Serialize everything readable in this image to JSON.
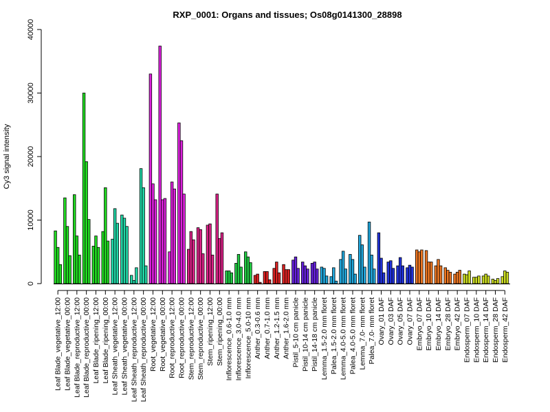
{
  "chart_data": {
    "type": "bar",
    "title": "RXP_0001: Organs and tissues; Os08g0141300_28898",
    "xlabel": "",
    "ylabel": "Cy3 signal intensity",
    "ylim": [
      0,
      40000
    ],
    "yticks": [
      0,
      10000,
      20000,
      30000,
      40000
    ],
    "categories": [
      "Leaf Blade_vegetative_12:00",
      "Leaf Blade_vegetative_00:00",
      "Leaf Blade_reproductive_12:00",
      "Leaf Blade_reproductive_00:00",
      "Leaf Blade_ripening_12:00",
      "Leaf Blade_ripening_00:00",
      "Leaf Sheath_vegetative_12:00",
      "Leaf Sheath_vegetative_00:00",
      "Leaf Sheath_reproductive_12:00",
      "Leaf Sheath_reproductive_00:00",
      "Root_vegetative_12:00",
      "Root_vegetative_00:00",
      "Root_reproductive_12:00",
      "Root_reproductive_00:00",
      "Stem_reproductive_12:00",
      "Stem_reproductive_00:00",
      "Stem_ripening_12:00",
      "Stem_ripening_00:00",
      "Inflorescence_0.6-1.0 mm",
      "Inflorescence_3.0-4.0 mm",
      "Inflorescence_5.0-10 mm",
      "Anther_0.3-0.6 mm",
      "Anther_0.7-1.0 mm",
      "Anther_1.2-1.5 mm",
      "Anther_1.6-2.0 mm",
      "Pistil_5-10 cm panicle",
      "Pistil_10-14 cm panicle",
      "Pistil_14-18 cm panicle",
      "Lemma_1.5-2.0 mm floret",
      "Palea_1.5-2.0 mm floret",
      "Lemma_4.0-5.0 mm floret",
      "Palea_4.0-5.0 mm floret",
      "Lemma_7.0- mm floret",
      "Palea_7.0- mm floret",
      "Ovary_01 DAF",
      "Ovary_03 DAF",
      "Ovary_05 DAF",
      "Ovary_07 DAF",
      "Embryo_07 DAF",
      "Embryo_10 DAF",
      "Embryo_14 DAF",
      "Embryo_28 DAF",
      "Embryo_42 DAF",
      "Endosperm_07 DAF",
      "Endosperm_10 DAF",
      "Endosperm_14 DAF",
      "Endosperm_28 DAF",
      "Endosperm_42 DAF"
    ],
    "groups": [
      {
        "color": "#22dd22",
        "values": [
          8300,
          5700,
          3000
        ]
      },
      {
        "color": "#22dd22",
        "values": [
          13500,
          9000,
          4400
        ]
      },
      {
        "color": "#22dd22",
        "values": [
          14000,
          7500,
          4500
        ]
      },
      {
        "color": "#22dd22",
        "values": [
          30000,
          19200,
          10100
        ]
      },
      {
        "color": "#22dd22",
        "values": [
          5900,
          7500,
          5700
        ]
      },
      {
        "color": "#22dd22",
        "values": [
          8200,
          15100,
          6700
        ]
      },
      {
        "color": "#22d8a8",
        "values": [
          7000,
          11800,
          9500
        ]
      },
      {
        "color": "#22d8a8",
        "values": [
          10800,
          10300,
          9000
        ]
      },
      {
        "color": "#22d8a8",
        "values": [
          1300,
          500,
          2500
        ]
      },
      {
        "color": "#22d8a8",
        "values": [
          18100,
          15100,
          2800
        ]
      },
      {
        "color": "#dd22dd",
        "values": [
          33000,
          15700,
          13200
        ]
      },
      {
        "color": "#dd22dd",
        "values": [
          37400,
          13200,
          13400
        ]
      },
      {
        "color": "#dd22dd",
        "values": [
          5000,
          16000,
          14900
        ]
      },
      {
        "color": "#dd22dd",
        "values": [
          25300,
          22500,
          14100
        ]
      },
      {
        "color": "#dd2288",
        "values": [
          5400,
          8200,
          6900
        ]
      },
      {
        "color": "#dd2288",
        "values": [
          8800,
          8500,
          4700
        ]
      },
      {
        "color": "#dd2288",
        "values": [
          9200,
          9400,
          4500
        ]
      },
      {
        "color": "#dd2288",
        "values": [
          14100,
          7100,
          8000
        ]
      },
      {
        "color": "#22cc44",
        "values": [
          2000,
          2000,
          1700
        ]
      },
      {
        "color": "#22cc44",
        "values": [
          3200,
          4600,
          2600
        ]
      },
      {
        "color": "#22cc44",
        "values": [
          5000,
          4200,
          3300
        ]
      },
      {
        "color": "#dd2222",
        "values": [
          1300,
          1500,
          200
        ]
      },
      {
        "color": "#dd2222",
        "values": [
          1900,
          1900,
          600
        ]
      },
      {
        "color": "#dd2222",
        "values": [
          2400,
          3400,
          1700
        ]
      },
      {
        "color": "#dd2222",
        "values": [
          3000,
          2200,
          2200
        ]
      },
      {
        "color": "#6622dd",
        "values": [
          3700,
          4200,
          2400
        ]
      },
      {
        "color": "#6622dd",
        "values": [
          3400,
          2800,
          2300
        ]
      },
      {
        "color": "#6622dd",
        "values": [
          3200,
          3400,
          2300
        ]
      },
      {
        "color": "#22a8dd",
        "values": [
          2600,
          2400,
          1200
        ]
      },
      {
        "color": "#22a8dd",
        "values": [
          1100,
          2500,
          400
        ]
      },
      {
        "color": "#22a8dd",
        "values": [
          3800,
          5100,
          2300
        ]
      },
      {
        "color": "#22a8dd",
        "values": [
          4600,
          3800,
          1500
        ]
      },
      {
        "color": "#22a8dd",
        "values": [
          7600,
          6100,
          2600
        ]
      },
      {
        "color": "#22a8dd",
        "values": [
          9700,
          4500,
          2300
        ]
      },
      {
        "color": "#2233dd",
        "values": [
          8000,
          4000,
          1700
        ]
      },
      {
        "color": "#2233dd",
        "values": [
          3400,
          3600,
          2400
        ]
      },
      {
        "color": "#2233dd",
        "values": [
          2800,
          4100,
          2800
        ]
      },
      {
        "color": "#2233dd",
        "values": [
          2500,
          2900,
          2600
        ]
      },
      {
        "color": "#ee7722",
        "values": [
          5300,
          5000,
          5300
        ]
      },
      {
        "color": "#ee7722",
        "values": [
          5200,
          3400,
          3400
        ]
      },
      {
        "color": "#ee7722",
        "values": [
          2800,
          3800,
          2800
        ]
      },
      {
        "color": "#ee7722",
        "values": [
          2500,
          2100,
          1800
        ]
      },
      {
        "color": "#ee7722",
        "values": [
          1500,
          1800,
          2100
        ]
      },
      {
        "color": "#ccdd22",
        "values": [
          1500,
          1400,
          2000
        ]
      },
      {
        "color": "#ccdd22",
        "values": [
          1000,
          1000,
          1200
        ]
      },
      {
        "color": "#ccdd22",
        "values": [
          1200,
          1500,
          1200
        ]
      },
      {
        "color": "#ccdd22",
        "values": [
          700,
          500,
          800
        ]
      },
      {
        "color": "#ccdd22",
        "values": [
          1100,
          2000,
          1800
        ]
      }
    ]
  }
}
